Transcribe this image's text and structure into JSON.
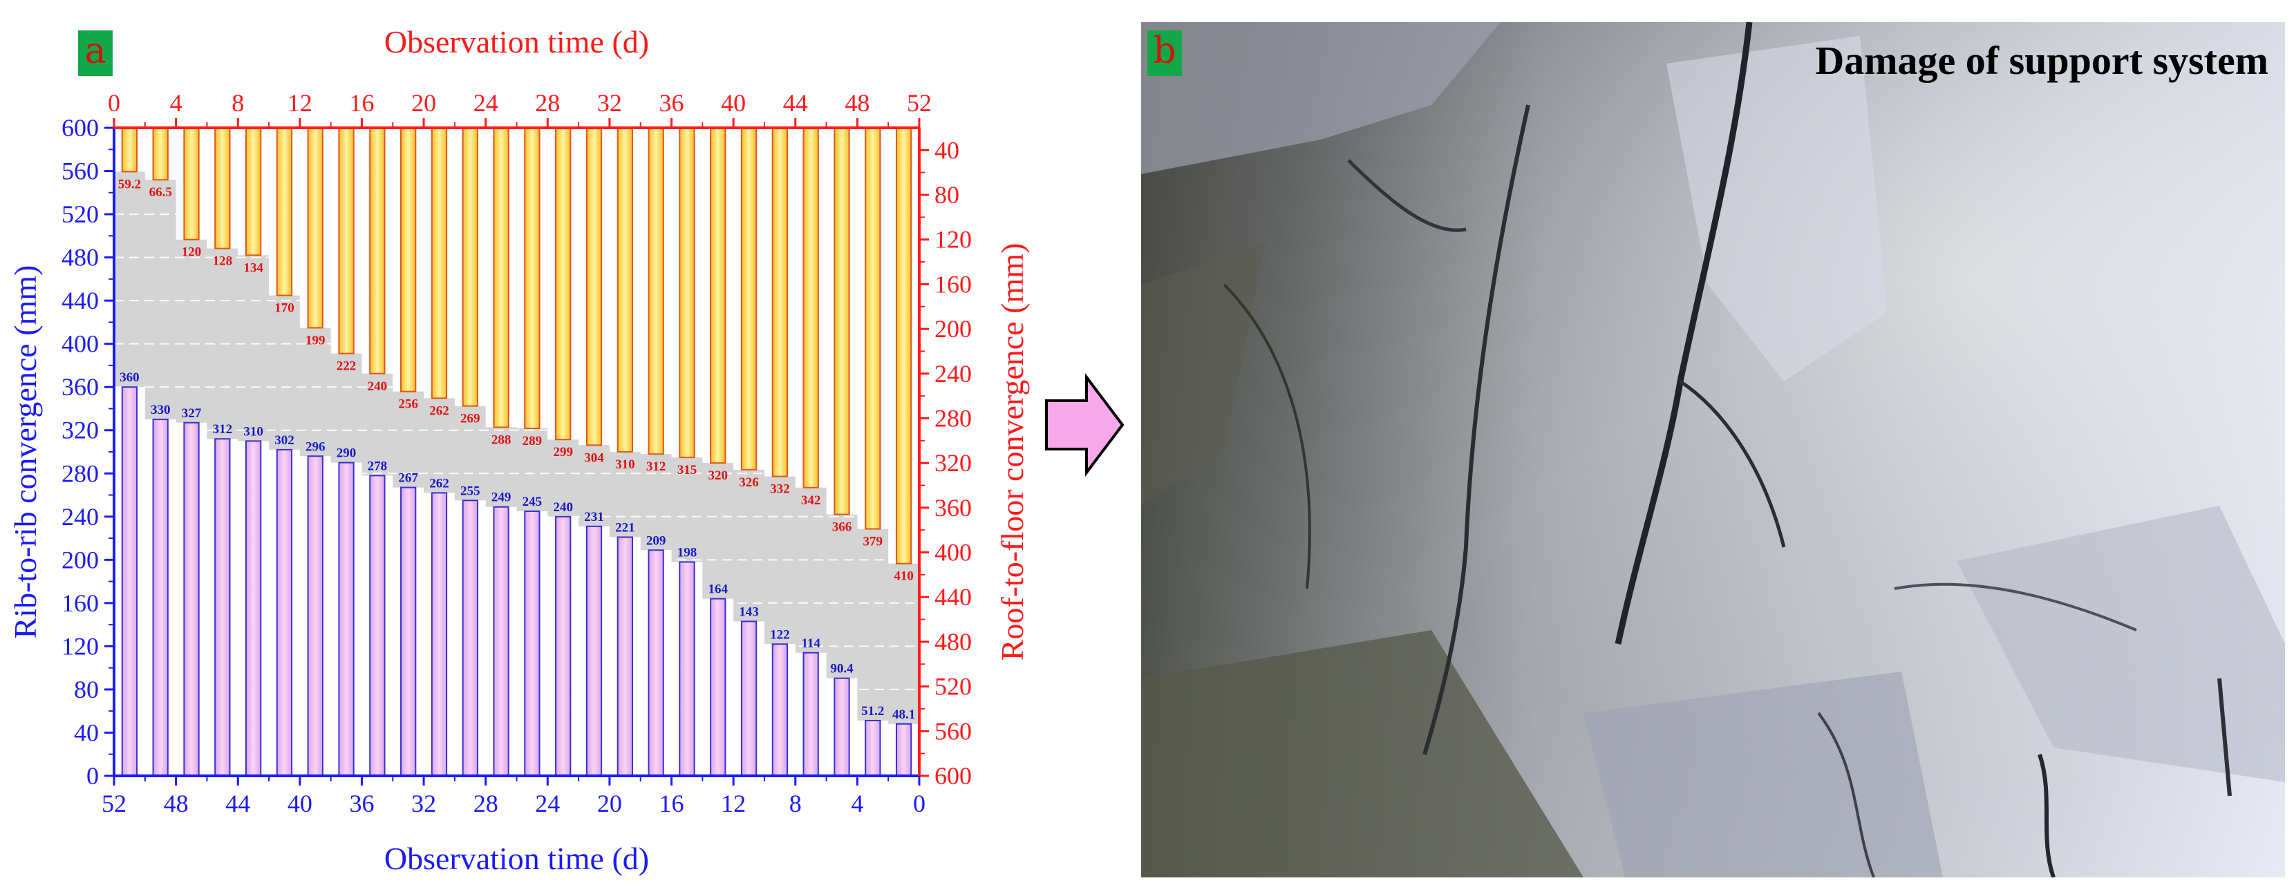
{
  "panels": {
    "a_label": "a",
    "b_label": "b"
  },
  "photo": {
    "title": "Damage of support system"
  },
  "colors": {
    "rib_bar": "#d8a8f0",
    "rib_bar_edge": "#3a2fd0",
    "roof_bar": "#f5c02a",
    "roof_bar_edge": "#e2541a",
    "rib_axis": "#1a1aff",
    "roof_axis": "#ff1a1a",
    "plot_background": "#d4d4d4",
    "arrow_fill": "#f7a8e8",
    "badge_fill": "#12a84a"
  },
  "chart_data": {
    "type": "bar",
    "top_axis": {
      "label": "Observation time (d)",
      "ticks": [
        "0",
        "4",
        "8",
        "12",
        "16",
        "20",
        "24",
        "28",
        "32",
        "36",
        "40",
        "44",
        "48",
        "52"
      ],
      "range": [
        0,
        52
      ]
    },
    "bottom_axis": {
      "label": "Observation time (d)",
      "ticks": [
        "52",
        "48",
        "44",
        "40",
        "36",
        "32",
        "28",
        "24",
        "20",
        "16",
        "12",
        "8",
        "4",
        "0"
      ],
      "range": [
        52,
        0
      ]
    },
    "left_axis": {
      "label": "Rib-to-rib  convergence (mm)",
      "ticks": [
        "0",
        "40",
        "80",
        "120",
        "160",
        "200",
        "240",
        "280",
        "320",
        "360",
        "400",
        "440",
        "480",
        "520",
        "560",
        "600"
      ],
      "range": [
        0,
        600
      ]
    },
    "right_axis": {
      "label": "Roof-to-floor  convergence (mm)",
      "ticks": [
        "40",
        "80",
        "120",
        "160",
        "200",
        "240",
        "280",
        "320",
        "360",
        "400",
        "440",
        "480",
        "520",
        "560",
        "600"
      ],
      "range": [
        20,
        600
      ],
      "inverted": true
    },
    "x": [
      1,
      3,
      5,
      7,
      9,
      11,
      13,
      15,
      17,
      19,
      21,
      23,
      25,
      27,
      29,
      31,
      33,
      35,
      37,
      39,
      41,
      43,
      45,
      47,
      49,
      51
    ],
    "series": [
      {
        "name": "Rib-to-rib  convergence (mm)",
        "axis": "left",
        "values": [
          360,
          330,
          327,
          312,
          310,
          302,
          296,
          290,
          278,
          267,
          262,
          255,
          249,
          245,
          240,
          231,
          221,
          209,
          198,
          164,
          143,
          122,
          114,
          90.4,
          51.2,
          48.1
        ],
        "labels": [
          "360",
          "330",
          "327",
          "312",
          "310",
          "302",
          "296",
          "290",
          "278",
          "267",
          "262",
          "255",
          "249",
          "245",
          "240",
          "231",
          "221",
          "209",
          "198",
          "164",
          "143",
          "122",
          "114",
          "90.4",
          "51.2",
          "48.1"
        ]
      },
      {
        "name": "Roof-to-floor  convergence (mm)",
        "axis": "right",
        "values": [
          59.2,
          66.5,
          120,
          128,
          134,
          170,
          199,
          222,
          240,
          256,
          262,
          269,
          288,
          289,
          299,
          304,
          310,
          312,
          315,
          320,
          326,
          332,
          342,
          366,
          379,
          410
        ],
        "labels": [
          "59.2",
          "66.5",
          "120",
          "128",
          "134",
          "170",
          "199",
          "222",
          "240",
          "256",
          "262",
          "269",
          "288",
          "289",
          "299",
          "304",
          "310",
          "312",
          "315",
          "320",
          "326",
          "332",
          "342",
          "366",
          "379",
          "410"
        ]
      }
    ],
    "grid": false
  }
}
